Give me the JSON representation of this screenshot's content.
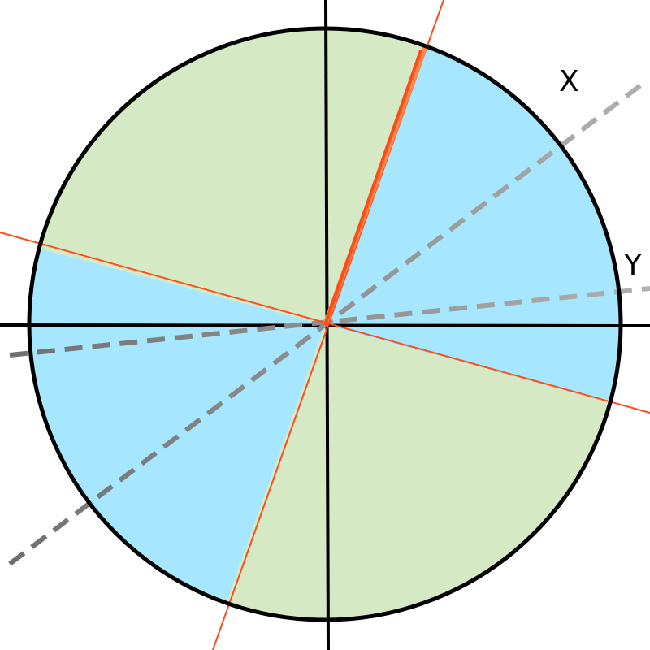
{
  "labels": {
    "x": "X",
    "y": "Y"
  },
  "colors": {
    "sector_a": "#A6E6FF",
    "sector_b": "#D5EAC4",
    "outline": "#000000",
    "axis": "#000000",
    "dashed_line": "#8C8C8C",
    "red_line": "#FF4A1A",
    "orange_line": "#FF8A4A"
  }
}
